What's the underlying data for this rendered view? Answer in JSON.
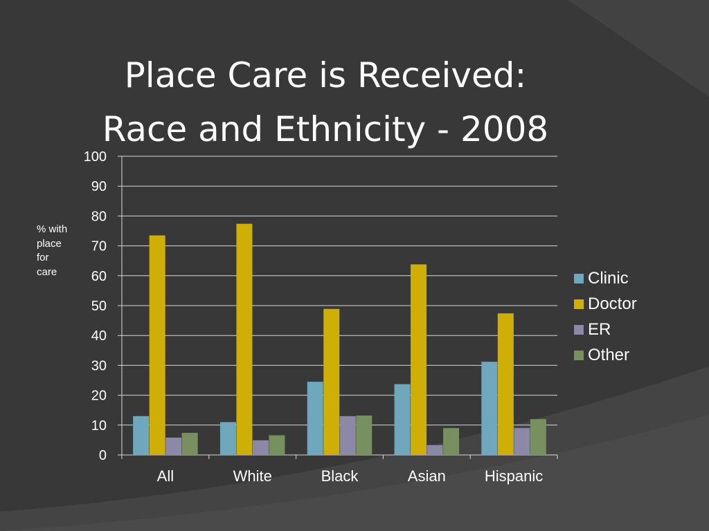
{
  "slide": {
    "title_line1": "Place Care is Received:",
    "title_line2": "Race and Ethnicity - 2008",
    "y_axis_label": "% with place for care"
  },
  "colors": {
    "background": "#3a3a3a",
    "gridline": "#d9d9d9",
    "text": "#ffffff"
  },
  "chart_data": {
    "type": "bar",
    "categories": [
      "All",
      "White",
      "Black",
      "Asian",
      "Hispanic"
    ],
    "series": [
      {
        "name": "Clinic",
        "color": "#6fa8bd",
        "values": [
          13,
          11,
          24.5,
          23.7,
          31.2
        ]
      },
      {
        "name": "Doctor",
        "color": "#cfae06",
        "values": [
          73.5,
          77.4,
          48.9,
          63.8,
          47.4
        ]
      },
      {
        "name": "ER",
        "color": "#8c88a8",
        "values": [
          5.8,
          4.9,
          13,
          3.3,
          9
        ]
      },
      {
        "name": "Other",
        "color": "#788f60",
        "values": [
          7.4,
          6.6,
          13.2,
          9,
          12
        ]
      }
    ],
    "ylim": [
      0,
      100
    ],
    "yticks": [
      0,
      10,
      20,
      30,
      40,
      50,
      60,
      70,
      80,
      90,
      100
    ],
    "ylabel": "% with place for care",
    "grid": true,
    "legend_position": "right"
  }
}
